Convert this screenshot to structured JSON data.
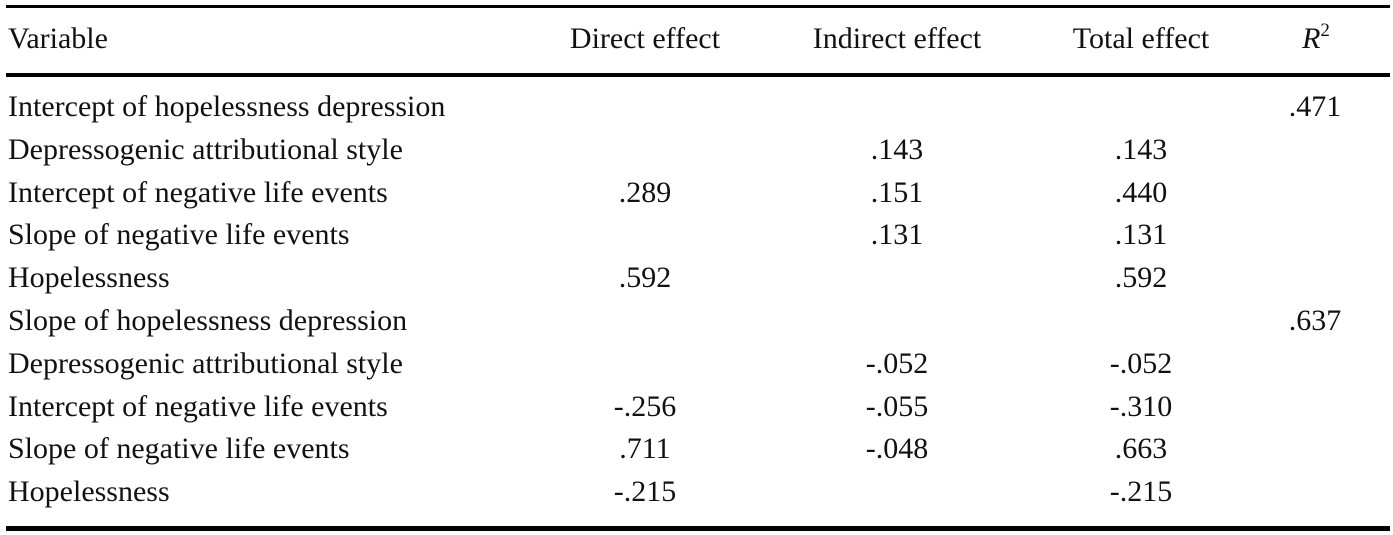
{
  "table": {
    "headers": {
      "variable": "Variable",
      "direct": "Direct effect",
      "indirect": "Indirect effect",
      "total": "Total effect",
      "r2_base": "R",
      "r2_sup": "2"
    },
    "rows": [
      {
        "variable": "Intercept of hopelessness depression",
        "direct": "",
        "indirect": "",
        "total": "",
        "r2": ".471"
      },
      {
        "variable": "Depressogenic attributional style",
        "direct": "",
        "indirect": ".143",
        "total": ".143",
        "r2": ""
      },
      {
        "variable": "Intercept of negative life events",
        "direct": ".289",
        "indirect": ".151",
        "total": ".440",
        "r2": ""
      },
      {
        "variable": "Slope of negative life events",
        "direct": "",
        "indirect": ".131",
        "total": ".131",
        "r2": ""
      },
      {
        "variable": "Hopelessness",
        "direct": ".592",
        "indirect": "",
        "total": ".592",
        "r2": ""
      },
      {
        "variable": "Slope of hopelessness depression",
        "direct": "",
        "indirect": "",
        "total": "",
        "r2": ".637"
      },
      {
        "variable": "Depressogenic attributional style",
        "direct": "",
        "indirect": "-.052",
        "total": "-.052",
        "r2": ""
      },
      {
        "variable": "Intercept of negative life events",
        "direct": "-.256",
        "indirect": "-.055",
        "total": "-.310",
        "r2": ""
      },
      {
        "variable": "Slope of negative life events",
        "direct": ".711",
        "indirect": "-.048",
        "total": ".663",
        "r2": ""
      },
      {
        "variable": "Hopelessness",
        "direct": "-.215",
        "indirect": "",
        "total": "-.215",
        "r2": ""
      }
    ]
  }
}
